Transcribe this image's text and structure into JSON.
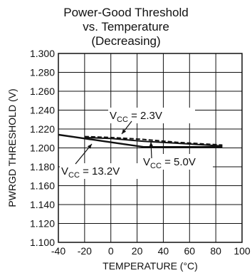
{
  "chart_data": {
    "type": "line",
    "title": [
      "Power-Good Threshold",
      "vs. Temperature",
      "(Decreasing)"
    ],
    "xlabel": "TEMPERATURE (°C)",
    "ylabel": "PWRGD THRESHOLD (V)",
    "xlim": [
      -40,
      100
    ],
    "ylim": [
      1.1,
      1.3
    ],
    "x_ticks": [
      "-40",
      "-20",
      "0",
      "20",
      "40",
      "60",
      "80",
      "100"
    ],
    "y_ticks": [
      "1.100",
      "1.120",
      "1.140",
      "1.160",
      "1.180",
      "1.200",
      "1.220",
      "1.240",
      "1.260",
      "1.280",
      "1.300"
    ],
    "grid": true,
    "series": [
      {
        "name": "VCC = 13.2V",
        "style": "solid",
        "x": [
          -40,
          -20,
          0,
          25,
          50,
          85
        ],
        "y": [
          1.214,
          1.21,
          1.206,
          1.201,
          1.201,
          1.201
        ]
      },
      {
        "name": "VCC = 5.0V",
        "style": "solid",
        "x": [
          -20,
          0,
          25,
          50,
          85
        ],
        "y": [
          1.211,
          1.21,
          1.207,
          1.205,
          1.202
        ]
      },
      {
        "name": "VCC = 2.3V",
        "style": "dashed",
        "x": [
          -20,
          0,
          25,
          50,
          85
        ],
        "y": [
          1.212,
          1.211,
          1.209,
          1.206,
          1.203
        ]
      }
    ],
    "annotations": [
      {
        "prefix": "V",
        "sub": "CC",
        "suffix": " = 2.3V"
      },
      {
        "prefix": "V",
        "sub": "CC",
        "suffix": " = 13.2V"
      },
      {
        "prefix": "V",
        "sub": "CC",
        "suffix": " = 5.0V"
      }
    ]
  }
}
